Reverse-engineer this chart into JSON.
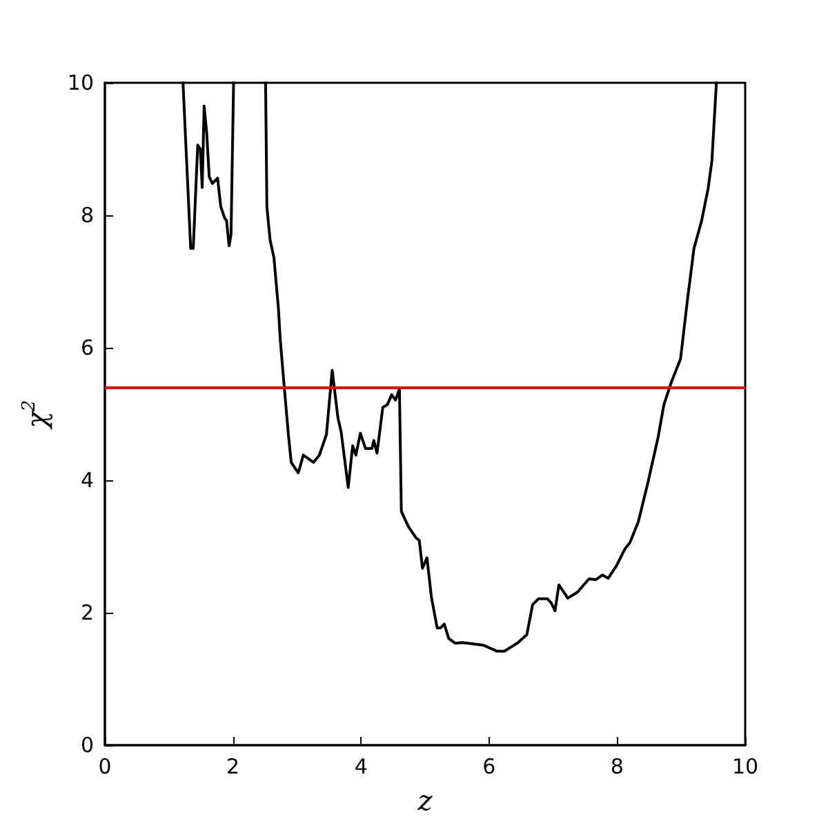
{
  "chart_data": {
    "type": "line",
    "xlabel": "z",
    "ylabel": "χ$^{2}$",
    "series": [
      {
        "color": "#000000",
        "x": [
          1.22,
          1.34,
          1.38,
          1.45,
          1.49,
          1.52,
          1.55,
          1.59,
          1.63,
          1.68,
          1.76,
          1.81,
          1.87,
          1.9,
          1.94,
          1.97,
          2.01,
          2.2,
          2.51,
          2.53,
          2.58,
          2.64,
          2.71,
          2.74,
          2.8,
          2.87,
          2.91,
          3.02,
          3.1,
          3.26,
          3.35,
          3.46,
          3.55,
          3.64,
          3.69,
          3.8,
          3.87,
          3.92,
          3.99,
          4.07,
          4.17,
          4.2,
          4.25,
          4.34,
          4.41,
          4.48,
          4.54,
          4.6,
          4.63,
          4.74,
          4.86,
          4.91,
          4.96,
          5.03,
          5.1,
          5.19,
          5.24,
          5.3,
          5.37,
          5.47,
          5.58,
          5.91,
          6.12,
          6.24,
          6.44,
          6.59,
          6.68,
          6.77,
          6.91,
          6.97,
          7.03,
          7.09,
          7.23,
          7.38,
          7.56,
          7.67,
          7.77,
          7.86,
          7.99,
          8.12,
          8.2,
          8.33,
          8.48,
          8.64,
          8.73,
          8.85,
          8.99,
          9.1,
          9.2,
          9.32,
          9.42,
          9.48,
          9.55
        ],
        "values": [
          10,
          7.5,
          7.5,
          9.06,
          9.0,
          8.42,
          9.65,
          9.24,
          8.58,
          8.48,
          8.56,
          8.13,
          7.96,
          7.92,
          7.54,
          7.71,
          10,
          null,
          10,
          8.13,
          7.63,
          7.36,
          6.6,
          6.11,
          5.42,
          4.65,
          4.27,
          4.11,
          4.38,
          4.27,
          4.38,
          4.69,
          5.66,
          4.94,
          4.73,
          3.89,
          4.52,
          4.38,
          4.71,
          4.48,
          4.48,
          4.6,
          4.41,
          5.1,
          5.14,
          5.29,
          5.21,
          5.38,
          3.53,
          3.3,
          3.13,
          3.09,
          2.67,
          2.83,
          2.23,
          1.77,
          1.77,
          1.83,
          1.61,
          1.54,
          1.55,
          1.51,
          1.42,
          1.42,
          1.54,
          1.67,
          2.12,
          2.21,
          2.21,
          2.15,
          2.03,
          2.42,
          2.22,
          2.31,
          2.51,
          2.5,
          2.57,
          2.52,
          2.71,
          2.96,
          3.06,
          3.37,
          3.96,
          4.65,
          5.14,
          5.49,
          5.83,
          6.74,
          7.5,
          7.92,
          8.4,
          8.82,
          10
        ]
      }
    ],
    "xlim": [
      0,
      10
    ],
    "xticks": [
      0,
      2,
      4,
      6,
      8,
      10
    ],
    "ylim": [
      0,
      10
    ],
    "yticks": [
      0,
      2,
      4,
      6,
      8,
      10
    ],
    "ref_lines": [
      {
        "axis": "y",
        "value": 5.4,
        "color": "#ff0000"
      }
    ],
    "marker": "none",
    "line_style": "solid",
    "grid": false
  }
}
